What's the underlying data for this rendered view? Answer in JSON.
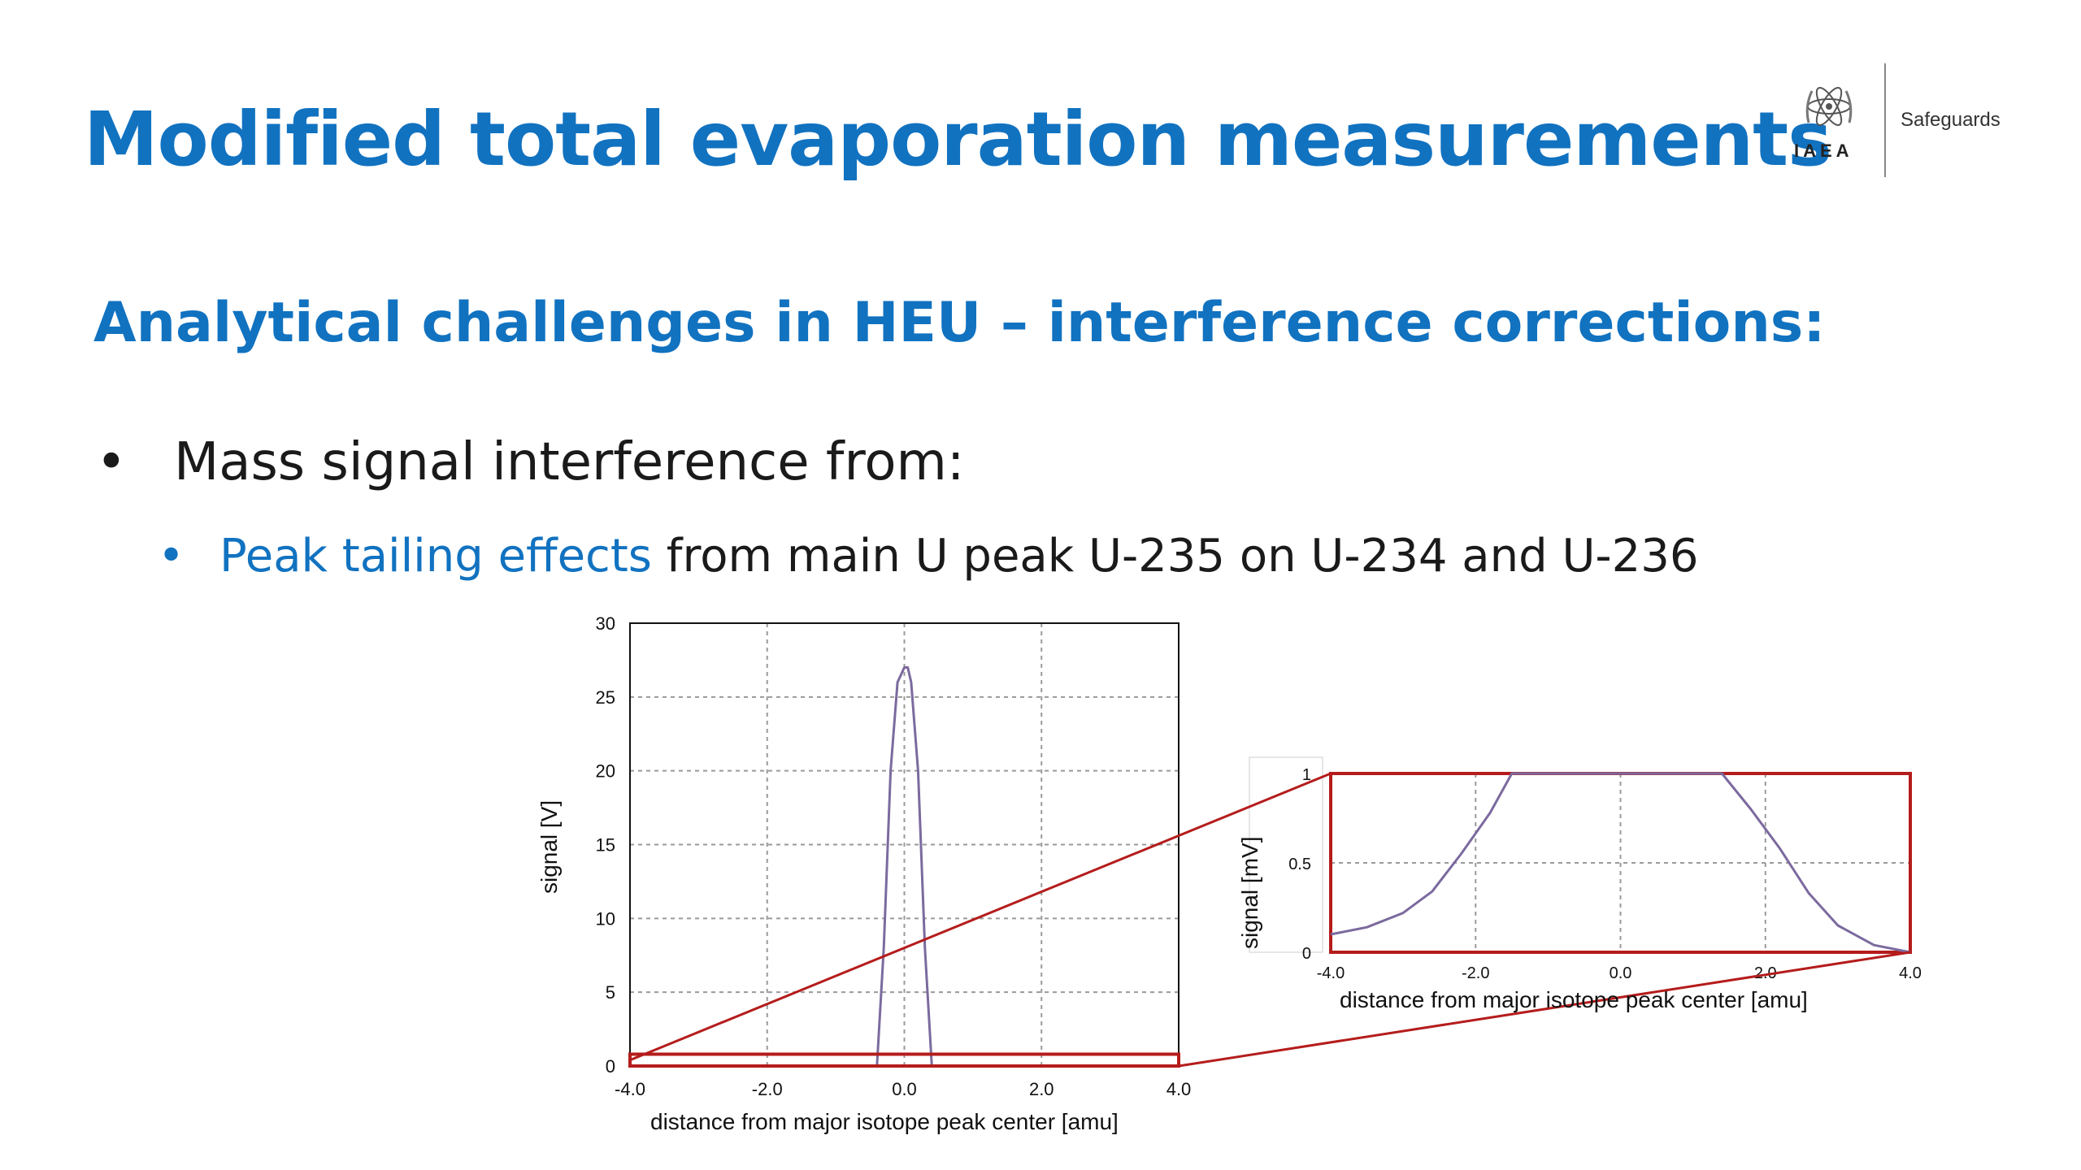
{
  "slide": {
    "title": "Modified total evaporation measurements",
    "subtitle": "Analytical challenges in HEU – interference corrections:",
    "bullets": {
      "level1_marker": "•",
      "level1_text": "Mass signal interference from:",
      "level2_marker": "•",
      "level2_highlight": "Peak tailing effects",
      "level2_rest": " from main U peak U-235 on U-234 and U-236"
    }
  },
  "logo": {
    "org": "IAEA",
    "division": "Safeguards",
    "emblem_icon": "iaea-atom-olive-icon"
  },
  "colors": {
    "accent_blue": "#1172c0",
    "curve": "#7b6a9e",
    "zoom_box": "#b51c1c",
    "grid": "#9a9a9a"
  },
  "chart_data": [
    {
      "type": "line",
      "xlabel": "distance from major isotope peak center [amu]",
      "ylabel": "signal [V]",
      "xlim": [
        -4.0,
        4.0
      ],
      "ylim": [
        0,
        30
      ],
      "x_ticks": [
        "-4.0",
        "-2.0",
        "0.0",
        "2.0",
        "4.0"
      ],
      "y_ticks": [
        "0",
        "5",
        "10",
        "15",
        "20",
        "25",
        "30"
      ],
      "grid": true,
      "series": [
        {
          "x": [
            -4.0,
            -0.4,
            -0.3,
            -0.2,
            -0.1,
            0.0,
            0.05,
            0.1,
            0.2,
            0.3,
            0.4,
            4.0
          ],
          "y": [
            0,
            0,
            8,
            20,
            26,
            27,
            27,
            26,
            20,
            8,
            0,
            0
          ]
        }
      ],
      "zoom_region": {
        "x": [
          -4.0,
          4.0
        ],
        "y": [
          0,
          0.8
        ]
      }
    },
    {
      "type": "line",
      "xlabel": "distance from major isotope peak center [amu]",
      "ylabel": "signal [mV]",
      "xlim": [
        -4.0,
        4.0
      ],
      "ylim": [
        0,
        1
      ],
      "x_ticks": [
        "-4.0",
        "-2.0",
        "0.0",
        "2.0",
        "4.0"
      ],
      "y_ticks": [
        "0",
        "0.5",
        "1"
      ],
      "grid": true,
      "series": [
        {
          "x": [
            -4.0,
            -3.5,
            -3.0,
            -2.6,
            -2.2,
            -1.8,
            -1.5,
            1.4,
            1.8,
            2.2,
            2.6,
            3.0,
            3.5,
            4.0
          ],
          "y": [
            0.1,
            0.14,
            0.22,
            0.34,
            0.55,
            0.78,
            1.0,
            1.0,
            0.8,
            0.58,
            0.33,
            0.15,
            0.04,
            0.0
          ]
        }
      ]
    }
  ]
}
